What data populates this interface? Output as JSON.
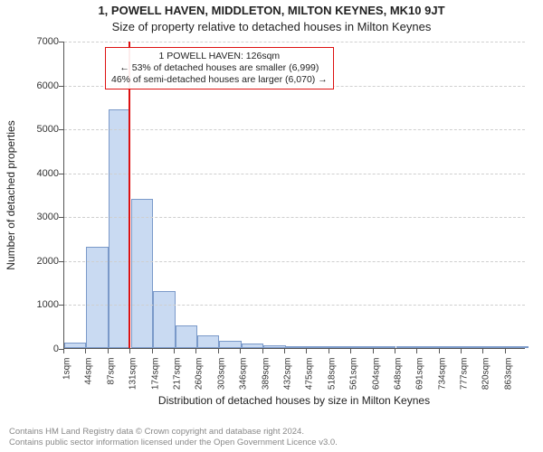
{
  "title_line1": "1, POWELL HAVEN, MIDDLETON, MILTON KEYNES, MK10 9JT",
  "title_line2": "Size of property relative to detached houses in Milton Keynes",
  "y_axis_label": "Number of detached properties",
  "x_axis_label": "Distribution of detached houses by size in Milton Keynes",
  "footer_line1": "Contains HM Land Registry data © Crown copyright and database right 2024.",
  "footer_line2": "Contains public sector information licensed under the Open Government Licence v3.0.",
  "annotation": {
    "line1": "1 POWELL HAVEN: 126sqm",
    "line2": "← 53% of detached houses are smaller (6,999)",
    "line3": "46% of semi-detached houses are larger (6,070) →"
  },
  "chart": {
    "type": "histogram",
    "ylim": [
      0,
      7000
    ],
    "ytick_step": 1000,
    "yticks": [
      0,
      1000,
      2000,
      3000,
      4000,
      5000,
      6000,
      7000
    ],
    "xlim_sqm": [
      1,
      900
    ],
    "xtick_step_sqm": 43,
    "xtick_labels": [
      "1sqm",
      "44sqm",
      "87sqm",
      "131sqm",
      "174sqm",
      "217sqm",
      "260sqm",
      "303sqm",
      "346sqm",
      "389sqm",
      "432sqm",
      "475sqm",
      "518sqm",
      "561sqm",
      "604sqm",
      "648sqm",
      "691sqm",
      "734sqm",
      "777sqm",
      "820sqm",
      "863sqm"
    ],
    "bar_color": "#c9daf2",
    "bar_border_color": "#7a99c9",
    "background_color": "#ffffff",
    "grid_color": "#cfcfcf",
    "marker_sqm": 126,
    "marker_color": "#dd1111",
    "bin_width_sqm": 43,
    "bins": [
      {
        "x_start": 1,
        "count": 120
      },
      {
        "x_start": 44,
        "count": 2300
      },
      {
        "x_start": 87,
        "count": 5430
      },
      {
        "x_start": 131,
        "count": 3400
      },
      {
        "x_start": 174,
        "count": 1300
      },
      {
        "x_start": 217,
        "count": 520
      },
      {
        "x_start": 260,
        "count": 290
      },
      {
        "x_start": 303,
        "count": 170
      },
      {
        "x_start": 346,
        "count": 110
      },
      {
        "x_start": 389,
        "count": 70
      },
      {
        "x_start": 432,
        "count": 40
      },
      {
        "x_start": 475,
        "count": 25
      },
      {
        "x_start": 518,
        "count": 18
      },
      {
        "x_start": 561,
        "count": 12
      },
      {
        "x_start": 604,
        "count": 8
      },
      {
        "x_start": 648,
        "count": 6
      },
      {
        "x_start": 691,
        "count": 5
      },
      {
        "x_start": 734,
        "count": 4
      },
      {
        "x_start": 777,
        "count": 3
      },
      {
        "x_start": 820,
        "count": 2
      },
      {
        "x_start": 863,
        "count": 2
      }
    ]
  }
}
